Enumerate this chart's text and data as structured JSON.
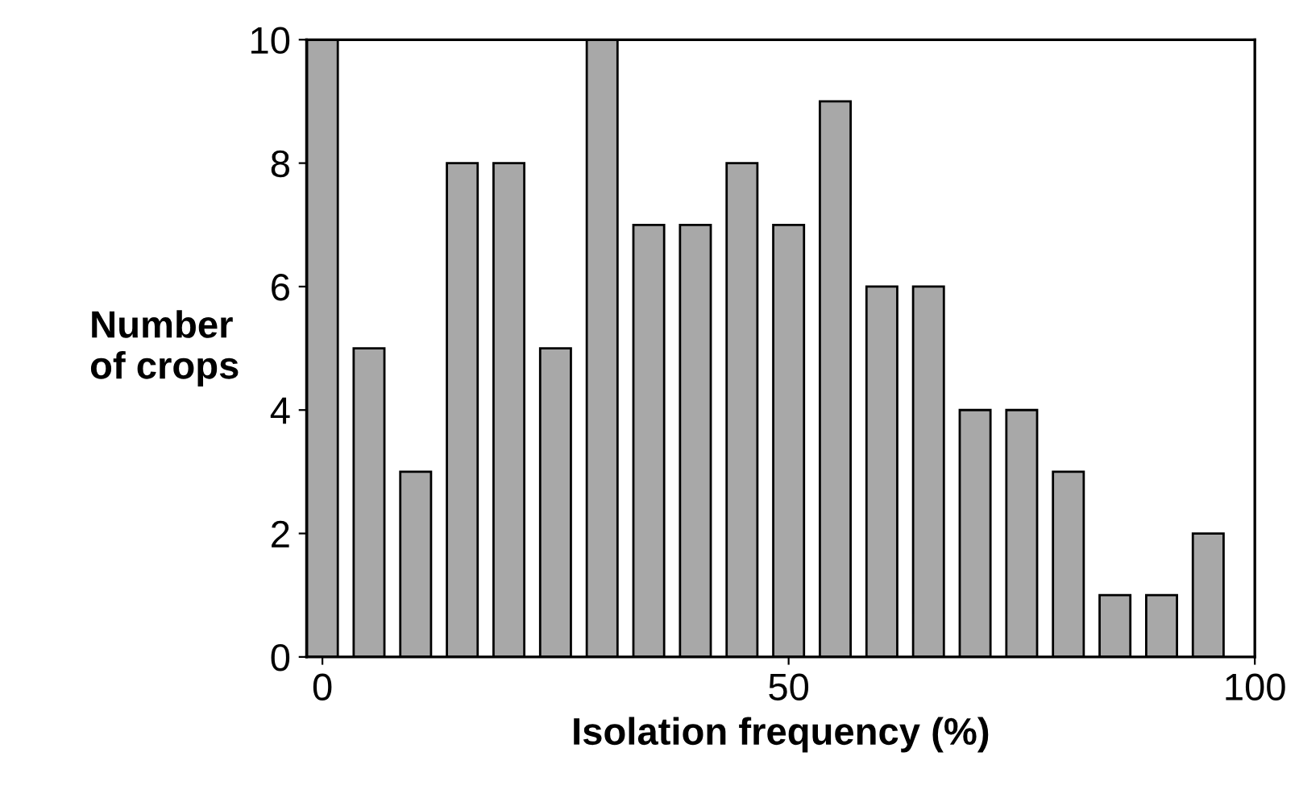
{
  "chart_data": {
    "type": "bar",
    "xlabel": "Isolation frequency (%)",
    "ylabel": "Number\nof crops",
    "x": [
      0,
      5,
      10,
      15,
      20,
      25,
      30,
      35,
      40,
      45,
      50,
      55,
      60,
      65,
      70,
      75,
      80,
      85,
      90,
      95
    ],
    "values": [
      10,
      5,
      3,
      8,
      8,
      5,
      10,
      7,
      7,
      8,
      7,
      9,
      6,
      6,
      4,
      4,
      3,
      1,
      1,
      2
    ],
    "color": "#a8a8a8",
    "xlim": [
      -1.7,
      100
    ],
    "xticks": [
      0,
      50,
      100
    ],
    "ylim": [
      0,
      10
    ],
    "yticks": [
      0,
      2,
      4,
      6,
      8,
      10
    ],
    "grid": false,
    "legend": false
  }
}
